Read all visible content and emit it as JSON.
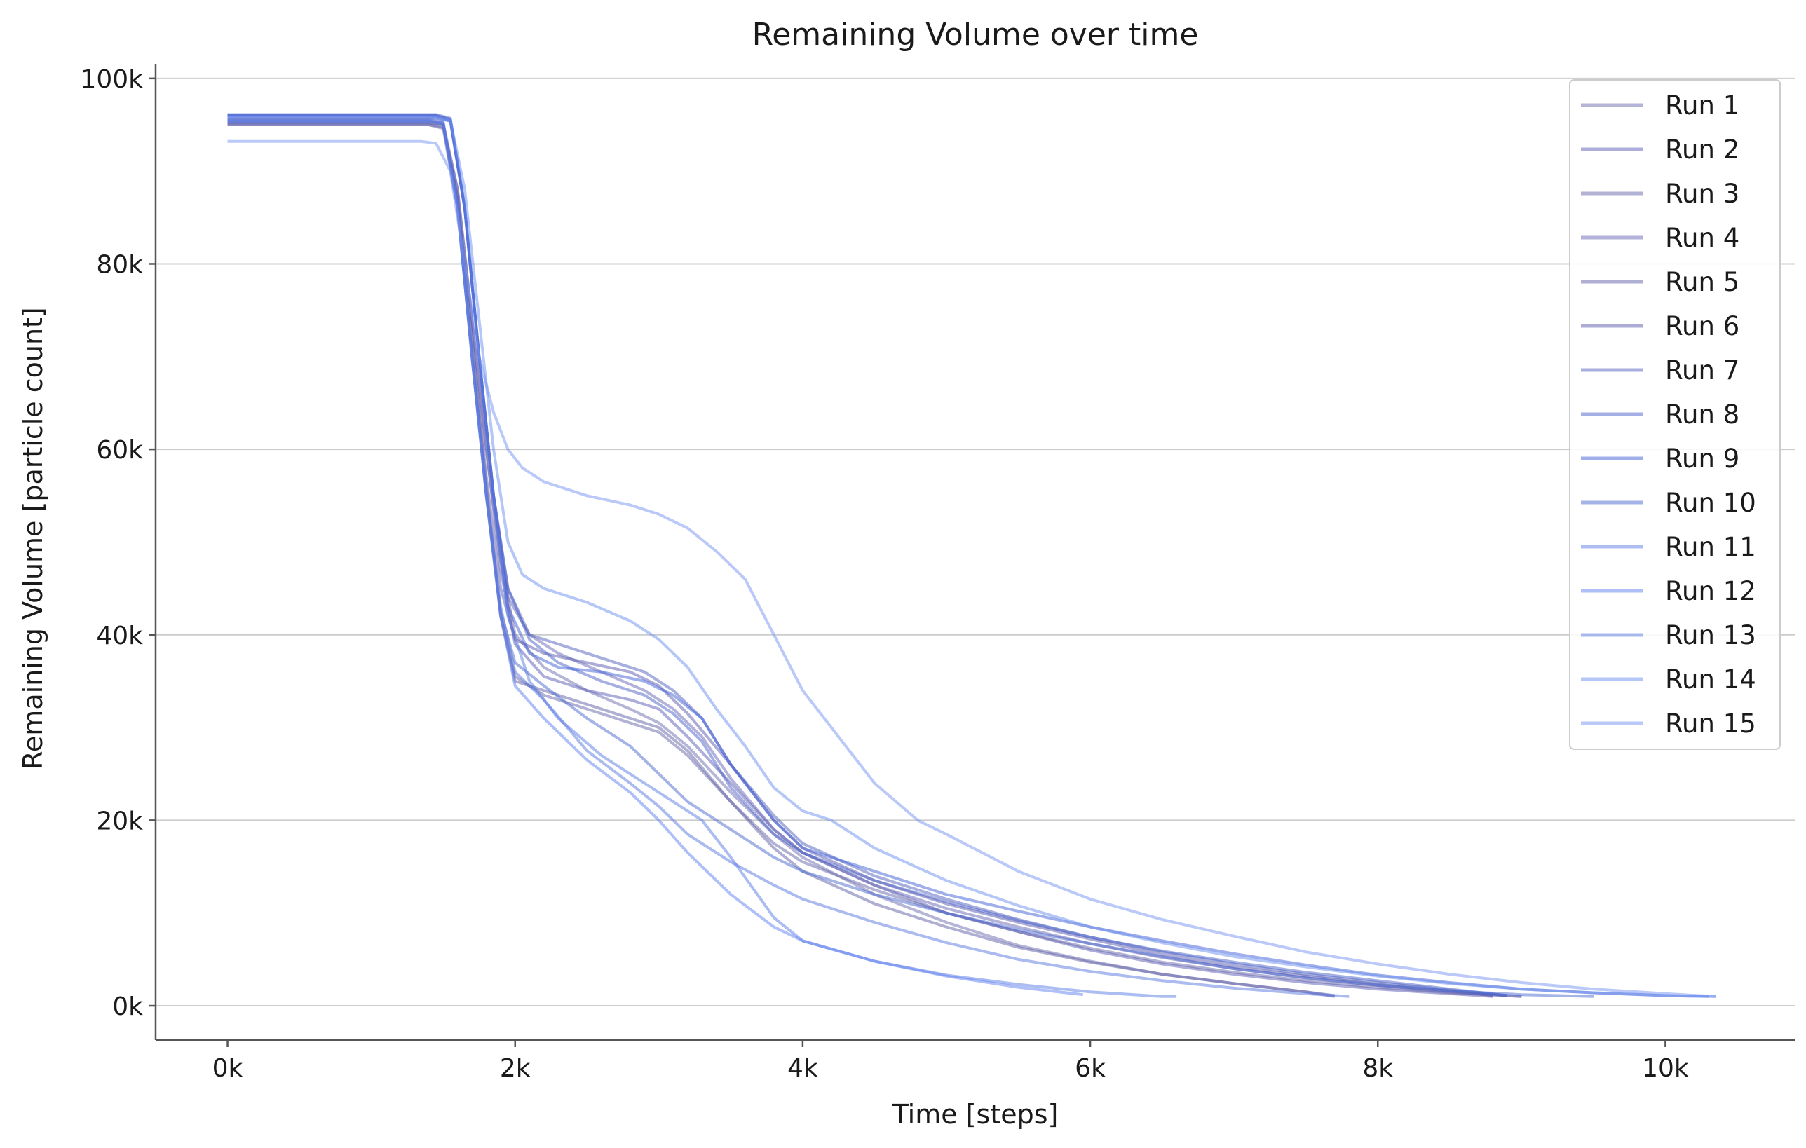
{
  "chart_data": {
    "type": "line",
    "title": "Remaining Volume over time",
    "xlabel": "Time [steps]",
    "ylabel": "Remaining Volume [particle count]",
    "xlim": [
      -500,
      10900
    ],
    "ylim": [
      -3700,
      101500
    ],
    "xticks": [
      0,
      2000,
      4000,
      6000,
      8000,
      10000
    ],
    "xtick_labels": [
      "0k",
      "2k",
      "4k",
      "6k",
      "8k",
      "10k"
    ],
    "yticks": [
      0,
      20000,
      40000,
      60000,
      80000,
      100000
    ],
    "ytick_labels": [
      "0k",
      "20k",
      "40k",
      "60k",
      "80k",
      "100k"
    ],
    "grid": "horizontal",
    "legend_position": "top-right",
    "series": [
      {
        "name": "Run 1",
        "color": "#6b6bb0",
        "x": [
          0,
          1400,
          1500,
          1600,
          1700,
          1800,
          1900,
          2000,
          2200,
          2500,
          2800,
          3000,
          3200,
          3500,
          3800,
          4000,
          4500,
          5000,
          5500,
          6000,
          6500,
          7000,
          7500,
          7700
        ],
        "y": [
          95500,
          95500,
          95200,
          88000,
          74000,
          60000,
          48000,
          40000,
          36500,
          34000,
          32000,
          30500,
          28000,
          23000,
          18500,
          16000,
          12000,
          9000,
          6500,
          4800,
          3400,
          2400,
          1500,
          1000
        ]
      },
      {
        "name": "Run 2",
        "color": "#5c5cb8",
        "x": [
          0,
          1400,
          1500,
          1600,
          1700,
          1800,
          1900,
          2000,
          2200,
          2500,
          2800,
          3000,
          3200,
          3500,
          3800,
          4000,
          4500,
          5000,
          5500,
          6000,
          6500,
          7000,
          7500,
          8000,
          8500,
          8800
        ],
        "y": [
          95000,
          95000,
          94800,
          88000,
          74000,
          60000,
          47000,
          39000,
          35500,
          34000,
          33000,
          32000,
          29000,
          24000,
          19000,
          16500,
          13000,
          10000,
          8000,
          6000,
          4500,
          3400,
          2500,
          1800,
          1300,
          1000
        ]
      },
      {
        "name": "Run 3",
        "color": "#6666aa",
        "x": [
          0,
          1400,
          1500,
          1600,
          1700,
          1800,
          1900,
          2000,
          2200,
          2500,
          2800,
          3000,
          3200,
          3500,
          3800,
          4000,
          4500,
          5000,
          5500,
          6000,
          6500,
          7000,
          7500,
          8000,
          8500,
          9000
        ],
        "y": [
          95200,
          95200,
          95000,
          87000,
          72000,
          56000,
          42000,
          35500,
          33500,
          32000,
          30500,
          29500,
          27000,
          22000,
          17500,
          15500,
          12500,
          10000,
          8000,
          6200,
          4700,
          3600,
          2700,
          2000,
          1400,
          1000
        ]
      },
      {
        "name": "Run 4",
        "color": "#6565b5",
        "x": [
          0,
          1450,
          1550,
          1650,
          1750,
          1850,
          1950,
          2100,
          2300,
          2600,
          2900,
          3100,
          3300,
          3500,
          3800,
          4000,
          4500,
          5000,
          5500,
          6000,
          6500,
          7000,
          7500,
          8000,
          8500,
          9000
        ],
        "y": [
          95700,
          95700,
          95400,
          86000,
          70000,
          55000,
          44000,
          40000,
          38000,
          36000,
          34000,
          32000,
          29000,
          24500,
          19000,
          16500,
          13000,
          10500,
          8500,
          6700,
          5200,
          4000,
          3000,
          2200,
          1500,
          1000
        ]
      },
      {
        "name": "Run 5",
        "color": "#6060a8",
        "x": [
          0,
          1400,
          1500,
          1600,
          1700,
          1800,
          1900,
          2000,
          2200,
          2500,
          2800,
          3000,
          3200,
          3500,
          3800,
          4000,
          4500,
          5000,
          5500,
          6000,
          6500,
          7000,
          7500,
          7700
        ],
        "y": [
          95000,
          95000,
          94600,
          86000,
          70000,
          55000,
          42000,
          35000,
          34000,
          32500,
          31000,
          30000,
          27500,
          22000,
          17000,
          14500,
          11000,
          8500,
          6300,
          4700,
          3400,
          2400,
          1500,
          1100
        ]
      },
      {
        "name": "Run 6",
        "color": "#5a5ab0",
        "x": [
          0,
          1400,
          1500,
          1600,
          1700,
          1800,
          1900,
          2000,
          2200,
          2500,
          2800,
          3000,
          3200,
          3500,
          3800,
          4000,
          4500,
          5000,
          5500,
          6000,
          6500,
          7000,
          7500,
          8000,
          8500,
          8800
        ],
        "y": [
          95300,
          95300,
          95000,
          87000,
          72000,
          57000,
          45000,
          39500,
          38000,
          37000,
          36000,
          34500,
          31500,
          26000,
          20000,
          17000,
          13500,
          11000,
          9000,
          7200,
          5500,
          4200,
          3200,
          2300,
          1600,
          1100
        ]
      },
      {
        "name": "Run 7",
        "color": "#4f5fc0",
        "x": [
          0,
          1450,
          1550,
          1650,
          1750,
          1850,
          1950,
          2100,
          2300,
          2600,
          2900,
          3100,
          3300,
          3500,
          3800,
          4000,
          4500,
          5000,
          5500,
          6000,
          6500,
          7000,
          7500,
          8000,
          8500,
          8900
        ],
        "y": [
          96000,
          96000,
          95600,
          86000,
          70000,
          55000,
          45000,
          40000,
          39000,
          37500,
          36000,
          34000,
          31000,
          26000,
          20500,
          17500,
          14000,
          11500,
          9300,
          7400,
          5800,
          4500,
          3400,
          2500,
          1700,
          1100
        ]
      },
      {
        "name": "Run 8",
        "color": "#4a62c8",
        "x": [
          0,
          1450,
          1550,
          1650,
          1750,
          1850,
          1950,
          2100,
          2300,
          2600,
          2900,
          3100,
          3300,
          3500,
          3800,
          4000,
          4500,
          5000,
          5500,
          6000,
          6500,
          7000,
          7500,
          8000,
          8500,
          8900
        ],
        "y": [
          96100,
          96100,
          95700,
          86000,
          70000,
          55000,
          45000,
          39500,
          37000,
          35000,
          33500,
          31500,
          28500,
          23500,
          18500,
          16500,
          13500,
          11200,
          9200,
          7400,
          5900,
          4700,
          3600,
          2700,
          1800,
          1100
        ]
      },
      {
        "name": "Run 9",
        "color": "#4060d8",
        "x": [
          0,
          1450,
          1550,
          1650,
          1750,
          1850,
          1950,
          2100,
          2300,
          2600,
          2900,
          3100,
          3300,
          3500,
          3800,
          4000,
          4500,
          5000,
          5500,
          6000,
          6500,
          7000,
          7500,
          8000,
          8500,
          9000,
          9500,
          10000,
          10300
        ],
        "y": [
          96000,
          96000,
          95500,
          86000,
          70000,
          55000,
          43000,
          38000,
          36500,
          36000,
          35000,
          33500,
          31000,
          26000,
          20000,
          17000,
          14500,
          12000,
          10200,
          8500,
          7000,
          5600,
          4400,
          3300,
          2500,
          1800,
          1400,
          1100,
          1000
        ]
      },
      {
        "name": "Run 10",
        "color": "#4a6ad0",
        "x": [
          0,
          1400,
          1500,
          1600,
          1700,
          1800,
          1900,
          2000,
          2200,
          2500,
          2800,
          3000,
          3200,
          3500,
          3800,
          4000,
          4500,
          5000,
          5500,
          6000,
          6500,
          7000,
          7500,
          8000,
          8500,
          9000,
          9500
        ],
        "y": [
          95400,
          95400,
          95100,
          86000,
          70000,
          55000,
          42500,
          37000,
          34500,
          31000,
          28000,
          25000,
          22000,
          19000,
          16000,
          14500,
          12000,
          10000,
          8200,
          6700,
          5300,
          4000,
          3000,
          2200,
          1600,
          1200,
          1000
        ]
      },
      {
        "name": "Run 11",
        "color": "#5a7be6",
        "x": [
          0,
          1450,
          1550,
          1650,
          1750,
          1850,
          1950,
          2100,
          2300,
          2600,
          2900,
          3100,
          3300,
          3500,
          3800,
          4000,
          4500,
          5000,
          5500,
          6000,
          6500,
          6600
        ],
        "y": [
          95800,
          95800,
          95400,
          86000,
          70000,
          55000,
          42000,
          35000,
          31000,
          27000,
          24000,
          22000,
          20000,
          16000,
          9500,
          7000,
          4800,
          3300,
          2300,
          1500,
          1000,
          1000
        ]
      },
      {
        "name": "Run 12",
        "color": "#6080f0",
        "x": [
          0,
          1400,
          1500,
          1600,
          1700,
          1800,
          1900,
          2000,
          2200,
          2500,
          2800,
          3000,
          3200,
          3500,
          3800,
          4000,
          4500,
          5000,
          5500,
          5950
        ],
        "y": [
          95400,
          95400,
          95200,
          86000,
          70000,
          55000,
          42000,
          34500,
          31000,
          26500,
          23000,
          20000,
          16500,
          12000,
          8500,
          7000,
          4800,
          3200,
          2000,
          1200
        ]
      },
      {
        "name": "Run 13",
        "color": "#5878e0",
        "x": [
          0,
          1400,
          1500,
          1600,
          1700,
          1800,
          1900,
          2000,
          2200,
          2500,
          2800,
          3000,
          3200,
          3500,
          3800,
          4000,
          4500,
          5000,
          5500,
          6000,
          6500,
          7000,
          7500,
          7800
        ],
        "y": [
          95600,
          95600,
          95300,
          86000,
          70000,
          55000,
          43000,
          36000,
          33000,
          27500,
          24000,
          21500,
          18500,
          15500,
          13000,
          11500,
          9000,
          6800,
          5000,
          3700,
          2700,
          1900,
          1300,
          1000
        ]
      },
      {
        "name": "Run 14",
        "color": "#6b8ff0",
        "x": [
          0,
          1450,
          1550,
          1650,
          1750,
          1850,
          1950,
          2050,
          2200,
          2500,
          2800,
          3000,
          3200,
          3400,
          3600,
          3800,
          4000,
          4200,
          4500,
          5000,
          5500,
          6000,
          6500,
          7000,
          7500,
          8000,
          8500,
          9000,
          9500,
          10000,
          10350
        ],
        "y": [
          95800,
          95800,
          95500,
          88000,
          74000,
          60000,
          50000,
          46500,
          45000,
          43500,
          41500,
          39500,
          36500,
          32000,
          28000,
          23500,
          21000,
          20000,
          17000,
          13500,
          10800,
          8500,
          6800,
          5300,
          4200,
          3200,
          2400,
          1800,
          1400,
          1100,
          1000
        ]
      },
      {
        "name": "Run 15",
        "color": "#7593f2",
        "x": [
          0,
          1350,
          1450,
          1550,
          1650,
          1750,
          1850,
          1950,
          2050,
          2200,
          2500,
          2800,
          3000,
          3200,
          3400,
          3600,
          3800,
          4000,
          4200,
          4500,
          4800,
          5000,
          5500,
          6000,
          6500,
          7000,
          7500,
          8000,
          8500,
          9000,
          9500,
          10000,
          10350
        ],
        "y": [
          93200,
          93200,
          93000,
          90000,
          80000,
          70000,
          64000,
          60000,
          58000,
          56500,
          55000,
          54000,
          53000,
          51500,
          49000,
          46000,
          40000,
          34000,
          30000,
          24000,
          20000,
          18500,
          14500,
          11500,
          9300,
          7500,
          5800,
          4500,
          3400,
          2500,
          1800,
          1300,
          1000
        ]
      }
    ]
  }
}
